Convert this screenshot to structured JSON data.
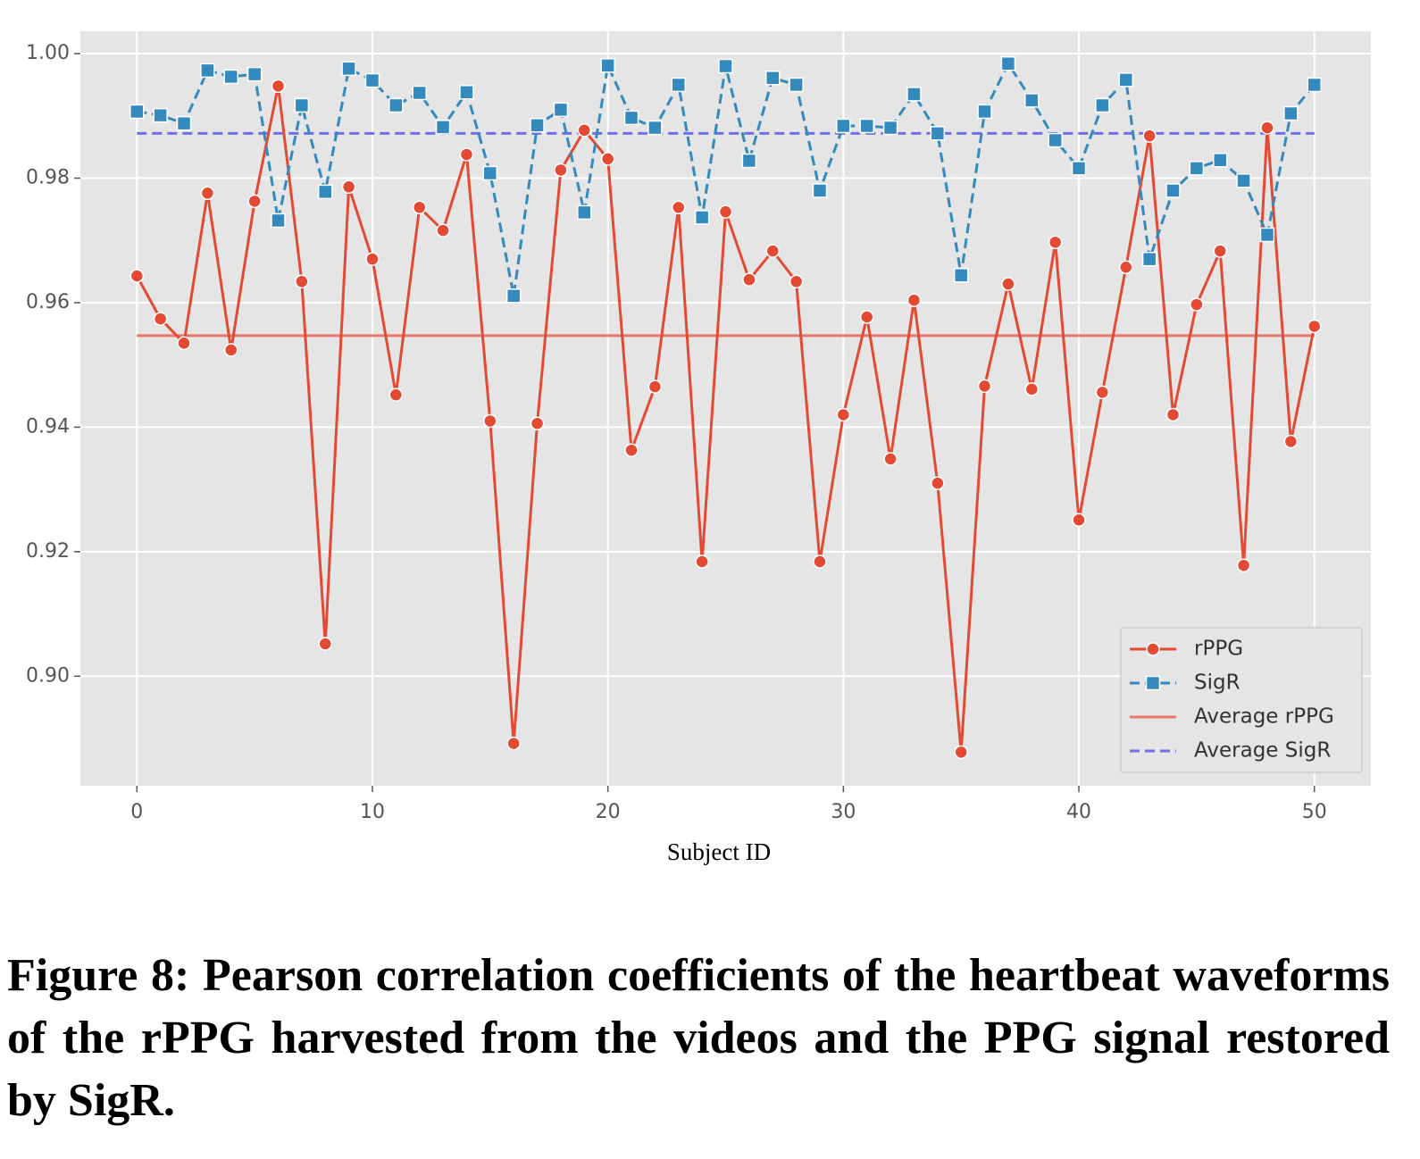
{
  "chart_data": {
    "type": "line",
    "xlabel": "Subject ID",
    "x": [
      0,
      1,
      2,
      3,
      4,
      5,
      6,
      7,
      8,
      9,
      10,
      11,
      12,
      13,
      14,
      15,
      16,
      17,
      18,
      19,
      20,
      21,
      22,
      23,
      24,
      25,
      26,
      27,
      28,
      29,
      30,
      31,
      32,
      33,
      34,
      35,
      36,
      37,
      38,
      39,
      40,
      41,
      42,
      43,
      44,
      45,
      46,
      47,
      48,
      49,
      50
    ],
    "series": [
      {
        "name": "rPPG",
        "color": "#E24A33",
        "marker": "circle",
        "dash": false,
        "values": [
          0.9643,
          0.9574,
          0.9535,
          0.9776,
          0.9524,
          0.9763,
          0.9948,
          0.9634,
          0.9052,
          0.9786,
          0.967,
          0.9452,
          0.9753,
          0.9716,
          0.9838,
          0.941,
          0.8892,
          0.9406,
          0.9813,
          0.9877,
          0.9831,
          0.9363,
          0.9465,
          0.9753,
          0.9184,
          0.9746,
          0.9637,
          0.9683,
          0.9634,
          0.9184,
          0.942,
          0.9577,
          0.9349,
          0.9604,
          0.931,
          0.8878,
          0.9466,
          0.963,
          0.9461,
          0.9697,
          0.9251,
          0.9456,
          0.9657,
          0.9868,
          0.942,
          0.9597,
          0.9683,
          0.9178,
          0.9881,
          0.9377,
          0.9562
        ]
      },
      {
        "name": "SigR",
        "color": "#348ABD",
        "marker": "square",
        "dash": true,
        "values": [
          0.9907,
          0.9901,
          0.9888,
          0.9973,
          0.9963,
          0.9967,
          0.9732,
          0.9917,
          0.9778,
          0.9976,
          0.9957,
          0.9917,
          0.9937,
          0.9882,
          0.9938,
          0.9808,
          0.9611,
          0.9885,
          0.991,
          0.9745,
          0.9981,
          0.9897,
          0.9881,
          0.995,
          0.9737,
          0.998,
          0.9828,
          0.9961,
          0.995,
          0.978,
          0.9884,
          0.9884,
          0.9881,
          0.9935,
          0.9872,
          0.9644,
          0.9907,
          0.9984,
          0.9925,
          0.9861,
          0.9816,
          0.9917,
          0.9958,
          0.967,
          0.978,
          0.9816,
          0.9829,
          0.9796,
          0.9709,
          0.9904,
          0.995
        ]
      }
    ],
    "average_lines": [
      {
        "name": "Average rPPG",
        "value": 0.9547,
        "color": "#E9766C",
        "dash": false
      },
      {
        "name": "Average SigR",
        "value": 0.9872,
        "color": "#6F6FEA",
        "dash": true
      }
    ],
    "xlim": [
      -2.4,
      52.4
    ],
    "xticks": [
      0,
      10,
      20,
      30,
      40,
      50
    ],
    "ylim": [
      0.8824,
      1.0036
    ],
    "yticks": [
      {
        "value": 0.9,
        "label": "0.90"
      },
      0.92,
      0.94,
      0.96,
      0.98,
      {
        "value": 1.0,
        "label": "1.00"
      }
    ],
    "grid": true,
    "legend": "lower right"
  },
  "caption": "Figure 8: Pearson correlation coefficients of the heartbeat waveforms of the rPPG harvested from the videos and the PPG signal restored by SigR."
}
